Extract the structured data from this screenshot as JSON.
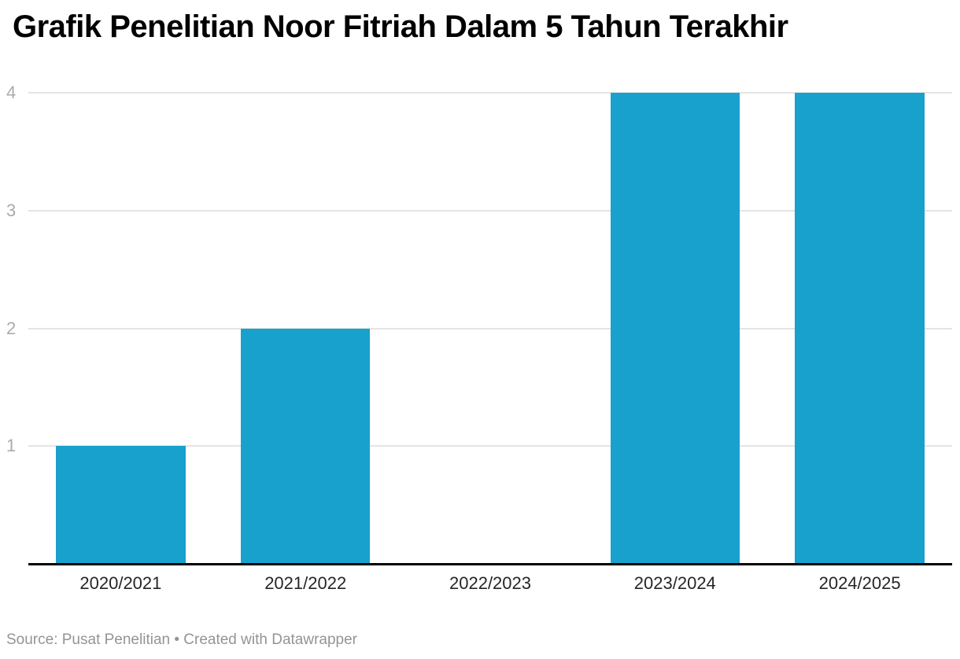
{
  "header": {
    "title": "Grafik Penelitian Noor Fitriah Dalam 5 Tahun Terakhir"
  },
  "footer": {
    "text": "Source: Pusat Penelitian • Created with Datawrapper"
  },
  "colors": {
    "bar": "#18a1cd",
    "gridline": "#e4e4e4",
    "axis_line": "#000000",
    "y_tick_label": "#ababab",
    "x_tick_label": "#262626",
    "title": "#000000",
    "footer": "#949494",
    "background": "#ffffff"
  },
  "chart_data": {
    "type": "bar",
    "title": "Grafik Penelitian Noor Fitriah Dalam 5 Tahun Terakhir",
    "categories": [
      "2020/2021",
      "2021/2022",
      "2022/2023",
      "2023/2024",
      "2024/2025"
    ],
    "values": [
      1,
      2,
      0,
      4,
      4
    ],
    "y_ticks": [
      1,
      2,
      3,
      4
    ],
    "ylim": [
      0,
      4
    ],
    "xlabel": "",
    "ylabel": "",
    "grid": "horizontal",
    "legend": "none",
    "source": "Pusat Penelitian",
    "attribution": "Created with Datawrapper"
  }
}
